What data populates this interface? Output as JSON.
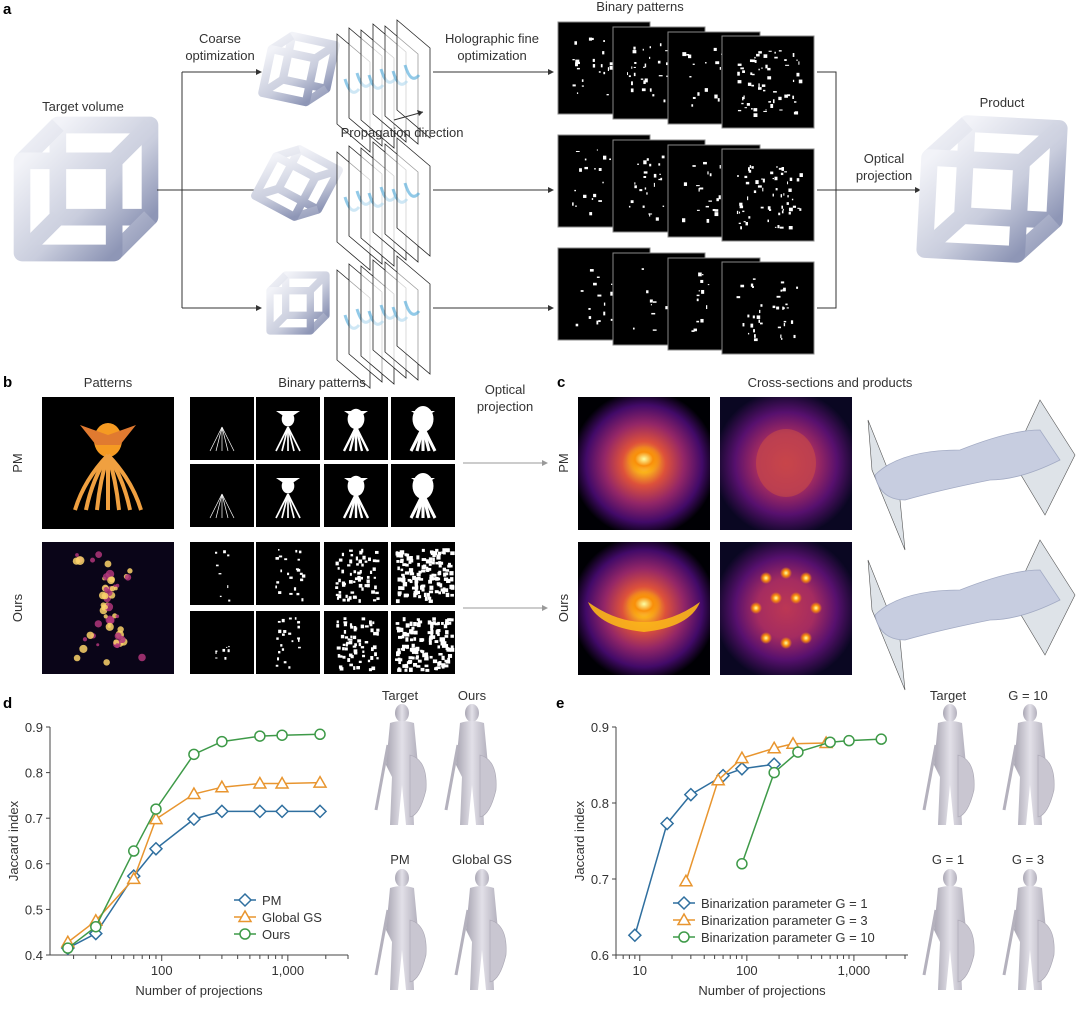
{
  "panel_a": {
    "letter": "a",
    "target_label": "Target volume",
    "coarse_label": [
      "Coarse",
      "optimization"
    ],
    "holographic_label": [
      "Holographic fine",
      "optimization"
    ],
    "propagation_label": "Propagation direction",
    "binary_label": "Binary patterns",
    "optical_label": [
      "Optical",
      "projection"
    ],
    "product_label": "Product"
  },
  "panel_b": {
    "letter": "b",
    "patterns_label": "Patterns",
    "binary_label": "Binary patterns",
    "rows": [
      "PM",
      "Ours"
    ],
    "optical_label": [
      "Optical",
      "projection"
    ]
  },
  "panel_c": {
    "letter": "c",
    "title": "Cross-sections and products",
    "rows": [
      "PM",
      "Ours"
    ]
  },
  "panel_d": {
    "letter": "d",
    "renders": [
      "Target",
      "Ours",
      "PM",
      "Global GS"
    ]
  },
  "panel_e": {
    "letter": "e",
    "renders": [
      "Target",
      "G = 10",
      "G = 1",
      "G = 3"
    ]
  },
  "colors": {
    "blue": "#2f6f9f",
    "orange": "#e8952f",
    "green": "#3e9a48"
  },
  "chart_data": [
    {
      "type": "line",
      "panel": "d",
      "xlabel": "Number of projections",
      "ylabel": "Jaccard index",
      "xscale": "log",
      "xlim": [
        13,
        3000
      ],
      "ylim": [
        0.4,
        0.9
      ],
      "xticks": [
        {
          "v": 100,
          "label": "100"
        },
        {
          "v": 1000,
          "label": "1,000"
        }
      ],
      "yticks": [
        {
          "v": 0.4,
          "label": "0.4"
        },
        {
          "v": 0.5,
          "label": "0.5"
        },
        {
          "v": 0.6,
          "label": "0.6"
        },
        {
          "v": 0.7,
          "label": "0.7"
        },
        {
          "v": 0.8,
          "label": "0.8"
        },
        {
          "v": 0.9,
          "label": "0.9"
        }
      ],
      "legend": "bottom-right",
      "series": [
        {
          "name": "PM",
          "marker": "diamond",
          "color": "#2f6f9f",
          "x": [
            18,
            30,
            60,
            90,
            180,
            300,
            600,
            900,
            1800
          ],
          "y": [
            0.415,
            0.447,
            0.573,
            0.633,
            0.698,
            0.715,
            0.715,
            0.715,
            0.715
          ]
        },
        {
          "name": "Global GS",
          "marker": "triangle",
          "color": "#e8952f",
          "x": [
            18,
            30,
            60,
            90,
            180,
            300,
            600,
            900,
            1800
          ],
          "y": [
            0.428,
            0.475,
            0.567,
            0.698,
            0.753,
            0.768,
            0.776,
            0.776,
            0.778
          ]
        },
        {
          "name": "Ours",
          "marker": "circle",
          "color": "#3e9a48",
          "x": [
            18,
            30,
            60,
            90,
            180,
            300,
            600,
            900,
            1800
          ],
          "y": [
            0.415,
            0.462,
            0.628,
            0.72,
            0.84,
            0.868,
            0.88,
            0.882,
            0.884
          ]
        }
      ]
    },
    {
      "type": "line",
      "panel": "e",
      "xlabel": "Number of projections",
      "ylabel": "Jaccard index",
      "xscale": "log",
      "xlim": [
        6,
        3200
      ],
      "ylim": [
        0.6,
        0.9
      ],
      "xticks": [
        {
          "v": 10,
          "label": "10"
        },
        {
          "v": 100,
          "label": "100"
        },
        {
          "v": 1000,
          "label": "1,000"
        }
      ],
      "yticks": [
        {
          "v": 0.6,
          "label": "0.6"
        },
        {
          "v": 0.7,
          "label": "0.7"
        },
        {
          "v": 0.8,
          "label": "0.8"
        },
        {
          "v": 0.9,
          "label": "0.9"
        }
      ],
      "legend": "bottom-right",
      "series": [
        {
          "name": "Binarization parameter G = 1",
          "marker": "diamond",
          "color": "#2f6f9f",
          "x": [
            9,
            18,
            30,
            60,
            90,
            180
          ],
          "y": [
            0.626,
            0.773,
            0.811,
            0.836,
            0.845,
            0.851
          ]
        },
        {
          "name": "Binarization parameter G = 3",
          "marker": "triangle",
          "color": "#e8952f",
          "x": [
            27,
            54,
            90,
            180,
            270,
            550
          ],
          "y": [
            0.697,
            0.83,
            0.859,
            0.872,
            0.878,
            0.879
          ]
        },
        {
          "name": "Binarization parameter G = 10",
          "marker": "circle",
          "color": "#3e9a48",
          "x": [
            90,
            180,
            300,
            600,
            900,
            1800
          ],
          "y": [
            0.72,
            0.84,
            0.867,
            0.88,
            0.882,
            0.884
          ]
        }
      ]
    }
  ]
}
